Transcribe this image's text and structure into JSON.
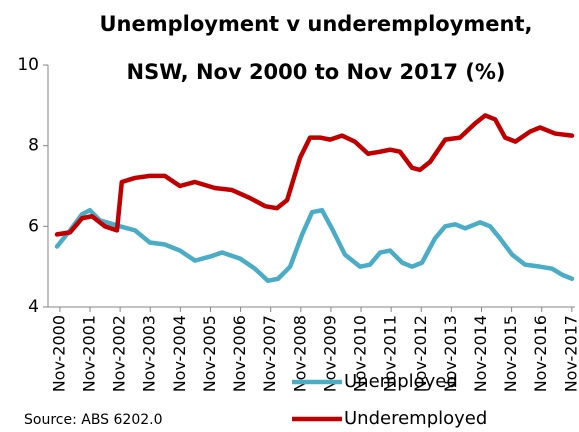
{
  "chart_data": {
    "type": "line",
    "title": [
      "Unemployment v underemployment,",
      "NSW, Nov 2000 to Nov 2017 (%)"
    ],
    "source": "Source: ABS 6202.0",
    "xlim": [
      2000.48,
      2017.98
    ],
    "xticks": [
      {
        "value": 2000.875,
        "label": "Nov-2000"
      },
      {
        "value": 2001.875,
        "label": "Nov-2001"
      },
      {
        "value": 2002.875,
        "label": "Nov-2002"
      },
      {
        "value": 2003.875,
        "label": "Nov-2003"
      },
      {
        "value": 2004.875,
        "label": "Nov-2004"
      },
      {
        "value": 2005.875,
        "label": "Nov-2005"
      },
      {
        "value": 2006.875,
        "label": "Nov-2006"
      },
      {
        "value": 2007.875,
        "label": "Nov-2007"
      },
      {
        "value": 2008.875,
        "label": "Nov-2008"
      },
      {
        "value": 2009.875,
        "label": "Nov-2009"
      },
      {
        "value": 2010.875,
        "label": "Nov-2010"
      },
      {
        "value": 2011.875,
        "label": "Nov-2011"
      },
      {
        "value": 2012.875,
        "label": "Nov-2012"
      },
      {
        "value": 2013.875,
        "label": "Nov-2013"
      },
      {
        "value": 2014.875,
        "label": "Nov-2014"
      },
      {
        "value": 2015.875,
        "label": "Nov-2015"
      },
      {
        "value": 2016.875,
        "label": "Nov-2016"
      },
      {
        "value": 2017.875,
        "label": "Nov-2017"
      }
    ],
    "ylim": [
      4,
      10
    ],
    "yticks": [
      4,
      6,
      8,
      10
    ],
    "series": [
      {
        "name": "Unemployed",
        "color": "#4bacc6",
        "x": [
          2000.78,
          2001.21,
          2001.61,
          2001.87,
          2002.2,
          2002.87,
          2003.37,
          2003.86,
          2004.36,
          2004.86,
          2005.36,
          2005.86,
          2006.26,
          2006.86,
          2007.35,
          2007.78,
          2008.12,
          2008.52,
          2008.92,
          2009.25,
          2009.58,
          2009.94,
          2010.34,
          2010.84,
          2011.17,
          2011.51,
          2011.84,
          2012.24,
          2012.57,
          2012.9,
          2013.33,
          2013.67,
          2014.0,
          2014.33,
          2014.83,
          2015.16,
          2015.49,
          2015.89,
          2016.32,
          2016.82,
          2017.22,
          2017.55,
          2017.88
        ],
        "values": [
          5.5,
          5.9,
          6.3,
          6.4,
          6.15,
          6.0,
          5.9,
          5.6,
          5.55,
          5.4,
          5.15,
          5.25,
          5.35,
          5.2,
          4.95,
          4.65,
          4.7,
          5.0,
          5.8,
          6.35,
          6.4,
          5.9,
          5.3,
          5.0,
          5.05,
          5.35,
          5.4,
          5.1,
          5.0,
          5.1,
          5.7,
          6.0,
          6.05,
          5.95,
          6.1,
          6.0,
          5.7,
          5.3,
          5.05,
          5.0,
          4.95,
          4.8,
          4.7
        ]
      },
      {
        "name": "Underemployed",
        "color": "#c00000",
        "x": [
          2000.78,
          2001.21,
          2001.61,
          2001.94,
          2002.37,
          2002.77,
          2002.93,
          2003.37,
          2003.86,
          2004.36,
          2004.86,
          2005.36,
          2006.02,
          2006.59,
          2007.19,
          2007.69,
          2008.08,
          2008.42,
          2008.85,
          2009.18,
          2009.51,
          2009.85,
          2010.24,
          2010.67,
          2011.11,
          2011.51,
          2011.84,
          2012.17,
          2012.57,
          2012.83,
          2013.17,
          2013.67,
          2014.16,
          2014.66,
          2015.0,
          2015.33,
          2015.66,
          2016.0,
          2016.49,
          2016.82,
          2017.32,
          2017.88
        ],
        "values": [
          5.8,
          5.85,
          6.2,
          6.25,
          6.0,
          5.9,
          7.1,
          7.2,
          7.25,
          7.25,
          7.0,
          7.1,
          6.95,
          6.9,
          6.7,
          6.5,
          6.45,
          6.65,
          7.7,
          8.2,
          8.2,
          8.15,
          8.25,
          8.1,
          7.8,
          7.85,
          7.9,
          7.85,
          7.45,
          7.4,
          7.6,
          8.15,
          8.2,
          8.55,
          8.75,
          8.65,
          8.2,
          8.1,
          8.35,
          8.45,
          8.3,
          8.25
        ]
      }
    ]
  }
}
